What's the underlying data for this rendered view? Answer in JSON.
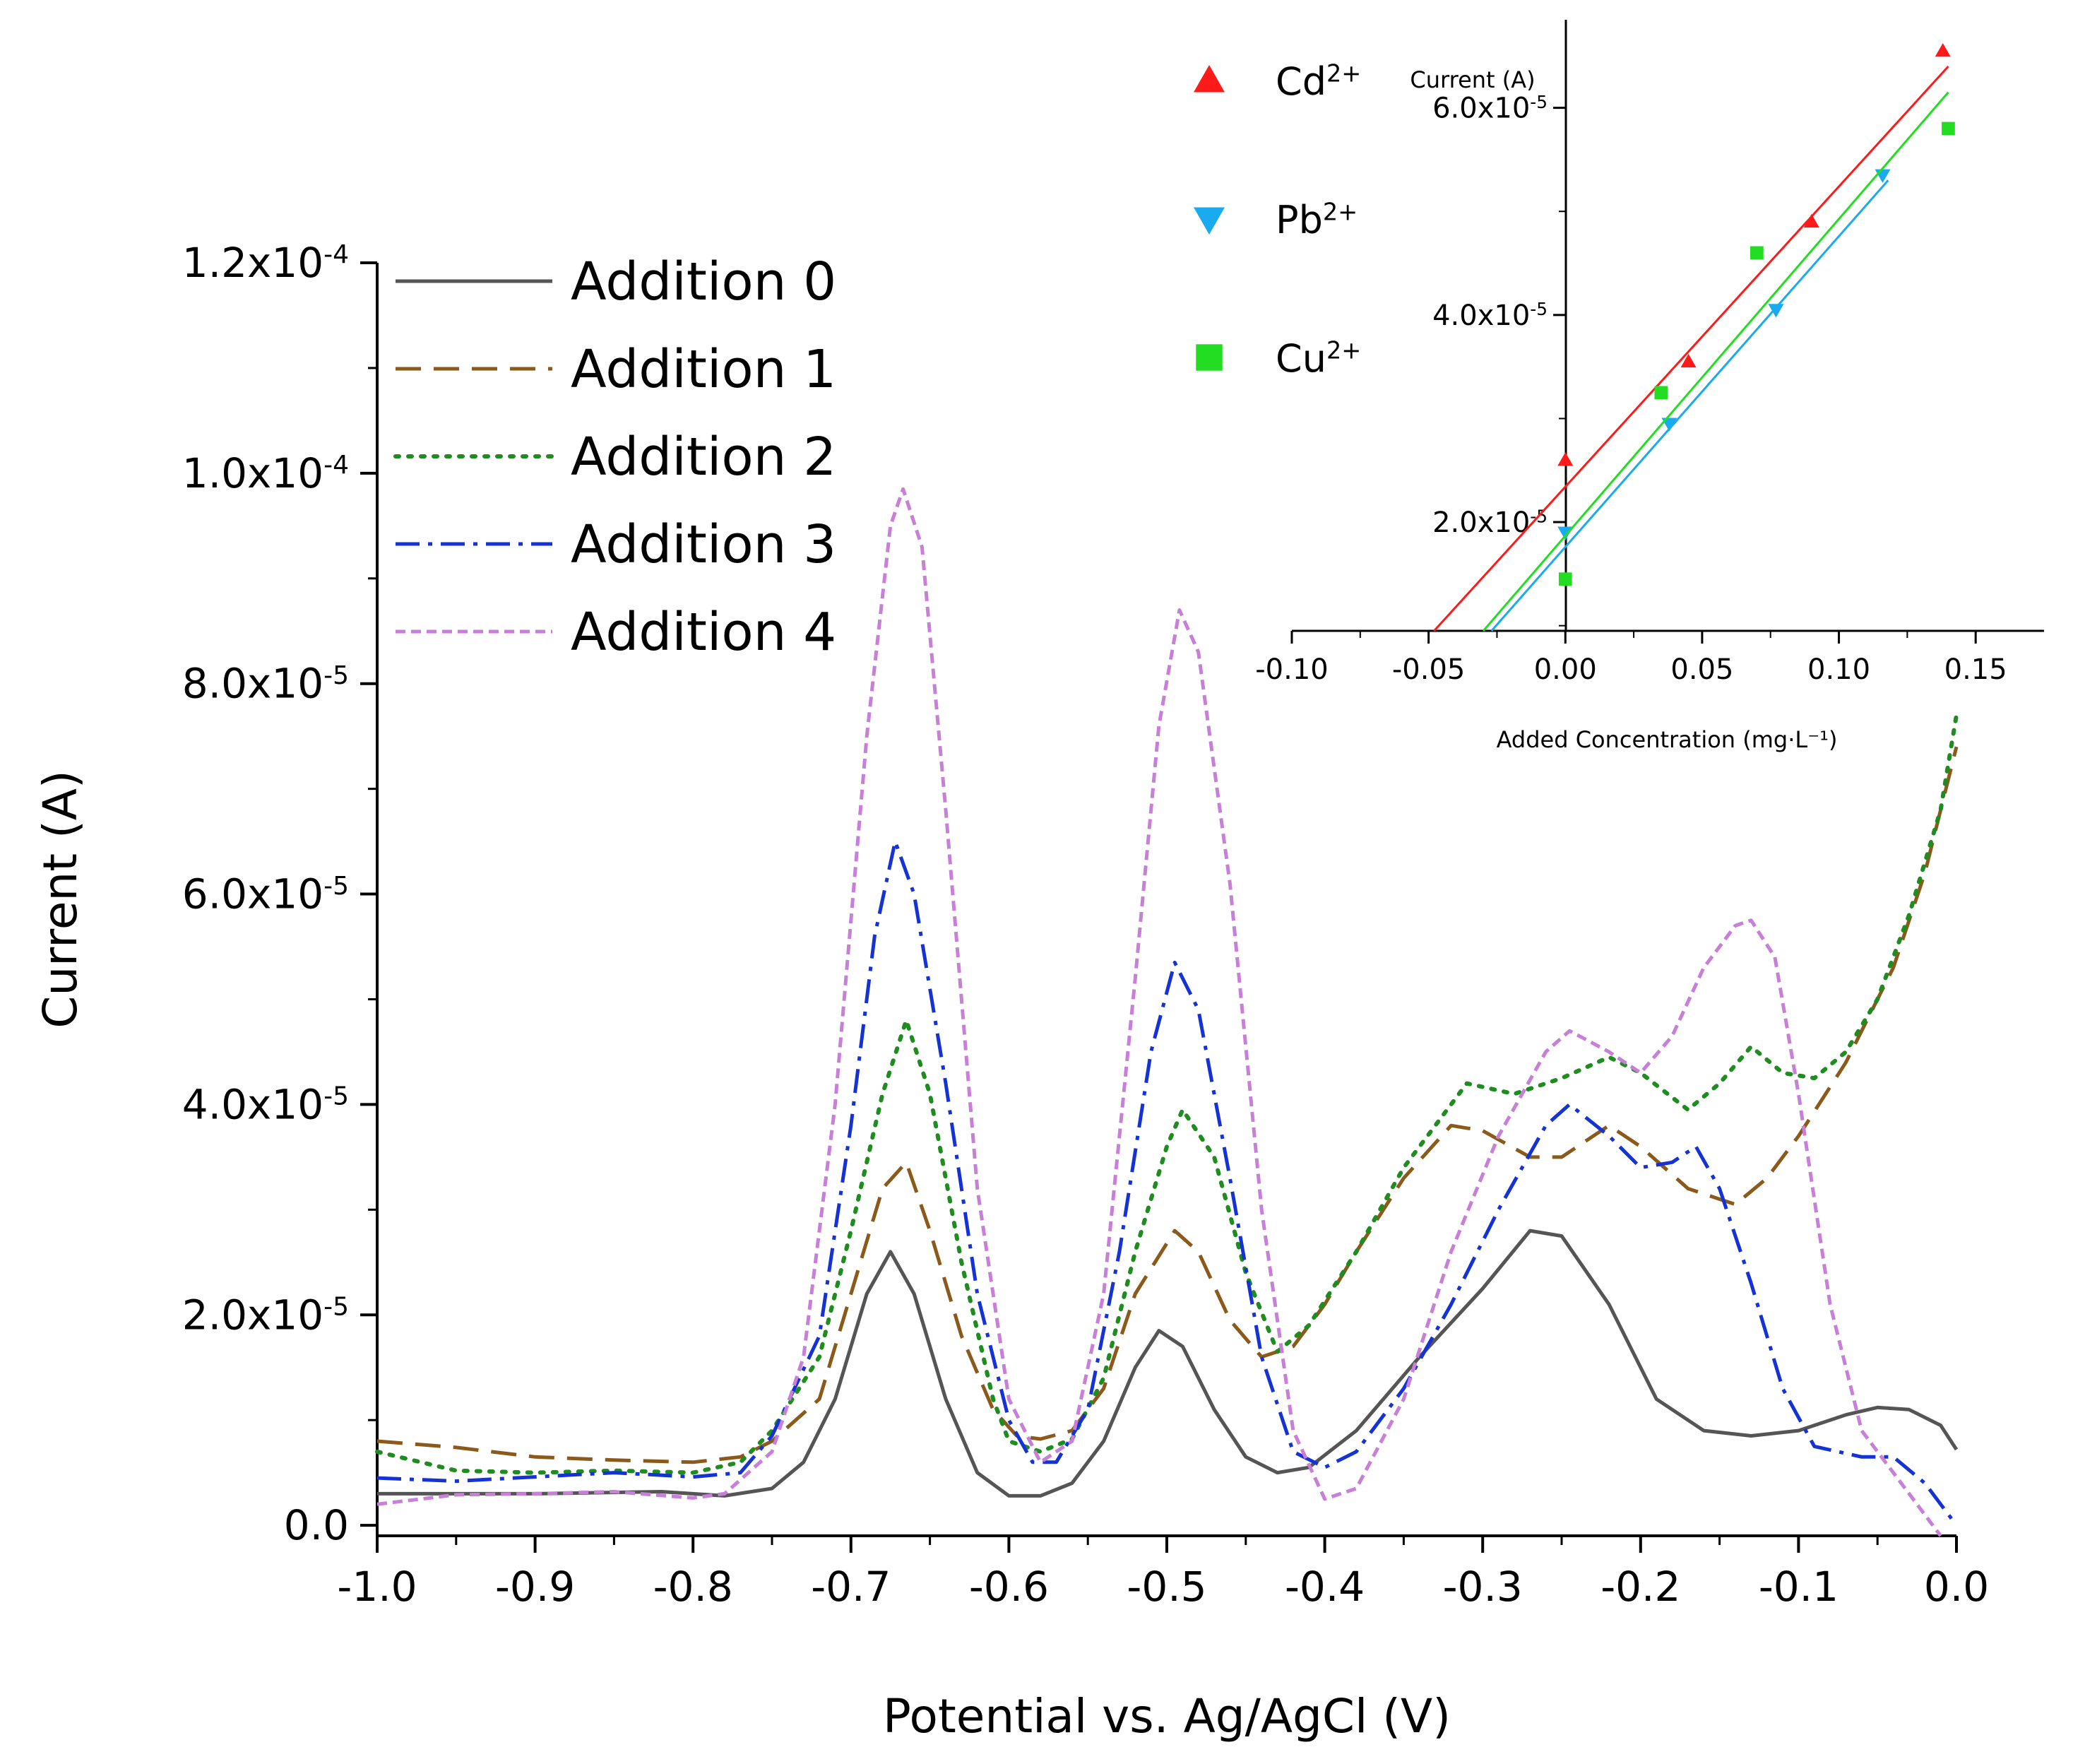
{
  "chart_data": [
    {
      "type": "line",
      "xlabel": "Potential vs. Ag/AgCl (V)",
      "ylabel": "Current (A)",
      "xlim": [
        -1.0,
        0.0
      ],
      "ylim": [
        -1e-06,
        0.00012
      ],
      "x_ticks": [
        "-1.0",
        "-0.9",
        "-0.8",
        "-0.7",
        "-0.6",
        "-0.5",
        "-0.4",
        "-0.3",
        "-0.2",
        "-0.1",
        "0.0"
      ],
      "y_ticks": [
        {
          "mantissa": "0.0",
          "exp": ""
        },
        {
          "mantissa": "2.0x10",
          "exp": "-5"
        },
        {
          "mantissa": "4.0x10",
          "exp": "-5"
        },
        {
          "mantissa": "6.0x10",
          "exp": "-5"
        },
        {
          "mantissa": "8.0x10",
          "exp": "-5"
        },
        {
          "mantissa": "1.0x10",
          "exp": "-4"
        },
        {
          "mantissa": "1.2x10",
          "exp": "-4"
        }
      ],
      "legend_position": "top-left",
      "series": [
        {
          "name": "Addition 0",
          "color": "#555555",
          "dash": "solid",
          "points": [
            [
              -1.0,
              3e-06
            ],
            [
              -0.9,
              3e-06
            ],
            [
              -0.82,
              3.2e-06
            ],
            [
              -0.78,
              2.8e-06
            ],
            [
              -0.75,
              3.5e-06
            ],
            [
              -0.73,
              6e-06
            ],
            [
              -0.71,
              1.2e-05
            ],
            [
              -0.69,
              2.2e-05
            ],
            [
              -0.675,
              2.6e-05
            ],
            [
              -0.66,
              2.2e-05
            ],
            [
              -0.64,
              1.2e-05
            ],
            [
              -0.62,
              5e-06
            ],
            [
              -0.6,
              2.8e-06
            ],
            [
              -0.58,
              2.8e-06
            ],
            [
              -0.56,
              4e-06
            ],
            [
              -0.54,
              8e-06
            ],
            [
              -0.52,
              1.5e-05
            ],
            [
              -0.505,
              1.85e-05
            ],
            [
              -0.49,
              1.7e-05
            ],
            [
              -0.47,
              1.1e-05
            ],
            [
              -0.45,
              6.5e-06
            ],
            [
              -0.43,
              5e-06
            ],
            [
              -0.41,
              5.5e-06
            ],
            [
              -0.38,
              9e-06
            ],
            [
              -0.34,
              1.6e-05
            ],
            [
              -0.3,
              2.25e-05
            ],
            [
              -0.27,
              2.8e-05
            ],
            [
              -0.25,
              2.75e-05
            ],
            [
              -0.22,
              2.1e-05
            ],
            [
              -0.19,
              1.2e-05
            ],
            [
              -0.16,
              9e-06
            ],
            [
              -0.13,
              8.5e-06
            ],
            [
              -0.1,
              9e-06
            ],
            [
              -0.07,
              1.05e-05
            ],
            [
              -0.05,
              1.12e-05
            ],
            [
              -0.03,
              1.1e-05
            ],
            [
              -0.01,
              9.5e-06
            ],
            [
              0.0,
              7.2e-06
            ]
          ]
        },
        {
          "name": "Addition 1",
          "color": "#8B5A1A",
          "dash": "long-dash",
          "points": [
            [
              -1.0,
              8e-06
            ],
            [
              -0.95,
              7.4e-06
            ],
            [
              -0.9,
              6.5e-06
            ],
            [
              -0.85,
              6.2e-06
            ],
            [
              -0.8,
              6e-06
            ],
            [
              -0.77,
              6.5e-06
            ],
            [
              -0.75,
              8e-06
            ],
            [
              -0.72,
              1.2e-05
            ],
            [
              -0.7,
              2.2e-05
            ],
            [
              -0.68,
              3.2e-05
            ],
            [
              -0.665,
              3.45e-05
            ],
            [
              -0.65,
              2.8e-05
            ],
            [
              -0.63,
              1.8e-05
            ],
            [
              -0.61,
              1.1e-05
            ],
            [
              -0.595,
              8.5e-06
            ],
            [
              -0.58,
              8.2e-06
            ],
            [
              -0.56,
              9e-06
            ],
            [
              -0.54,
              1.3e-05
            ],
            [
              -0.52,
              2.2e-05
            ],
            [
              -0.495,
              2.8e-05
            ],
            [
              -0.48,
              2.6e-05
            ],
            [
              -0.46,
              1.95e-05
            ],
            [
              -0.44,
              1.6e-05
            ],
            [
              -0.42,
              1.7e-05
            ],
            [
              -0.4,
              2.1e-05
            ],
            [
              -0.38,
              2.6e-05
            ],
            [
              -0.35,
              3.3e-05
            ],
            [
              -0.32,
              3.8e-05
            ],
            [
              -0.3,
              3.75e-05
            ],
            [
              -0.27,
              3.5e-05
            ],
            [
              -0.25,
              3.5e-05
            ],
            [
              -0.22,
              3.8e-05
            ],
            [
              -0.2,
              3.6e-05
            ],
            [
              -0.17,
              3.2e-05
            ],
            [
              -0.14,
              3.05e-05
            ],
            [
              -0.12,
              3.3e-05
            ],
            [
              -0.1,
              3.7e-05
            ],
            [
              -0.07,
              4.4e-05
            ],
            [
              -0.04,
              5.3e-05
            ],
            [
              -0.02,
              6.2e-05
            ],
            [
              0.0,
              7.4e-05
            ]
          ]
        },
        {
          "name": "Addition 2",
          "color": "#1E8C1E",
          "dash": "dotted",
          "points": [
            [
              -1.0,
              7e-06
            ],
            [
              -0.95,
              5.2e-06
            ],
            [
              -0.9,
              5e-06
            ],
            [
              -0.85,
              5.2e-06
            ],
            [
              -0.8,
              5e-06
            ],
            [
              -0.77,
              6e-06
            ],
            [
              -0.75,
              9e-06
            ],
            [
              -0.72,
              1.6e-05
            ],
            [
              -0.7,
              2.8e-05
            ],
            [
              -0.68,
              4.1e-05
            ],
            [
              -0.665,
              4.8e-05
            ],
            [
              -0.65,
              4.1e-05
            ],
            [
              -0.63,
              2.5e-05
            ],
            [
              -0.61,
              1.2e-05
            ],
            [
              -0.6,
              8e-06
            ],
            [
              -0.58,
              7e-06
            ],
            [
              -0.56,
              8.2e-06
            ],
            [
              -0.54,
              1.4e-05
            ],
            [
              -0.52,
              2.6e-05
            ],
            [
              -0.5,
              3.6e-05
            ],
            [
              -0.49,
              3.95e-05
            ],
            [
              -0.47,
              3.5e-05
            ],
            [
              -0.45,
              2.4e-05
            ],
            [
              -0.43,
              1.65e-05
            ],
            [
              -0.41,
              1.9e-05
            ],
            [
              -0.38,
              2.6e-05
            ],
            [
              -0.35,
              3.4e-05
            ],
            [
              -0.31,
              4.2e-05
            ],
            [
              -0.28,
              4.1e-05
            ],
            [
              -0.25,
              4.25e-05
            ],
            [
              -0.22,
              4.45e-05
            ],
            [
              -0.2,
              4.3e-05
            ],
            [
              -0.17,
              3.95e-05
            ],
            [
              -0.15,
              4.2e-05
            ],
            [
              -0.13,
              4.55e-05
            ],
            [
              -0.11,
              4.3e-05
            ],
            [
              -0.09,
              4.25e-05
            ],
            [
              -0.07,
              4.5e-05
            ],
            [
              -0.05,
              5e-05
            ],
            [
              -0.03,
              5.8e-05
            ],
            [
              -0.01,
              6.8e-05
            ],
            [
              0.0,
              7.7e-05
            ]
          ]
        },
        {
          "name": "Addition 3",
          "color": "#1533D4",
          "dash": "dash-dot",
          "points": [
            [
              -1.0,
              4.5e-06
            ],
            [
              -0.95,
              4.2e-06
            ],
            [
              -0.9,
              4.6e-06
            ],
            [
              -0.85,
              5e-06
            ],
            [
              -0.8,
              4.6e-06
            ],
            [
              -0.77,
              5e-06
            ],
            [
              -0.75,
              8.5e-06
            ],
            [
              -0.72,
              1.8e-05
            ],
            [
              -0.7,
              3.8e-05
            ],
            [
              -0.685,
              5.6e-05
            ],
            [
              -0.672,
              6.5e-05
            ],
            [
              -0.66,
              6e-05
            ],
            [
              -0.64,
              4.2e-05
            ],
            [
              -0.62,
              2.2e-05
            ],
            [
              -0.6,
              1e-05
            ],
            [
              -0.585,
              6e-06
            ],
            [
              -0.57,
              6e-06
            ],
            [
              -0.55,
              1.1e-05
            ],
            [
              -0.53,
              2.6e-05
            ],
            [
              -0.51,
              4.5e-05
            ],
            [
              -0.495,
              5.35e-05
            ],
            [
              -0.48,
              4.9e-05
            ],
            [
              -0.46,
              3.3e-05
            ],
            [
              -0.44,
              1.6e-05
            ],
            [
              -0.42,
              7e-06
            ],
            [
              -0.4,
              5.5e-06
            ],
            [
              -0.38,
              7e-06
            ],
            [
              -0.35,
              1.3e-05
            ],
            [
              -0.32,
              2.1e-05
            ],
            [
              -0.29,
              3e-05
            ],
            [
              -0.26,
              3.8e-05
            ],
            [
              -0.245,
              4e-05
            ],
            [
              -0.22,
              3.7e-05
            ],
            [
              -0.2,
              3.4e-05
            ],
            [
              -0.18,
              3.45e-05
            ],
            [
              -0.165,
              3.6e-05
            ],
            [
              -0.15,
              3.2e-05
            ],
            [
              -0.13,
              2.3e-05
            ],
            [
              -0.11,
              1.3e-05
            ],
            [
              -0.09,
              7.5e-06
            ],
            [
              -0.06,
              6.5e-06
            ],
            [
              -0.04,
              6.5e-06
            ],
            [
              -0.02,
              4e-06
            ],
            [
              0.0,
              0.0
            ]
          ]
        },
        {
          "name": "Addition 4",
          "color": "#C77FD8",
          "dash": "short-dash",
          "points": [
            [
              -1.0,
              2e-06
            ],
            [
              -0.95,
              2.9e-06
            ],
            [
              -0.9,
              3e-06
            ],
            [
              -0.85,
              3.2e-06
            ],
            [
              -0.8,
              2.6e-06
            ],
            [
              -0.78,
              3e-06
            ],
            [
              -0.75,
              7e-06
            ],
            [
              -0.73,
              1.6e-05
            ],
            [
              -0.71,
              4e-05
            ],
            [
              -0.69,
              7.5e-05
            ],
            [
              -0.675,
              9.5e-05
            ],
            [
              -0.667,
              9.85e-05
            ],
            [
              -0.655,
              9.3e-05
            ],
            [
              -0.64,
              6.8e-05
            ],
            [
              -0.62,
              3.2e-05
            ],
            [
              -0.6,
              1.2e-05
            ],
            [
              -0.58,
              6e-06
            ],
            [
              -0.56,
              8e-06
            ],
            [
              -0.54,
              2.2e-05
            ],
            [
              -0.52,
              5.2e-05
            ],
            [
              -0.505,
              7.6e-05
            ],
            [
              -0.492,
              8.7e-05
            ],
            [
              -0.48,
              8.3e-05
            ],
            [
              -0.46,
              6.1e-05
            ],
            [
              -0.44,
              3e-05
            ],
            [
              -0.42,
              9e-06
            ],
            [
              -0.4,
              2.5e-06
            ],
            [
              -0.38,
              3.5e-06
            ],
            [
              -0.35,
              1.2e-05
            ],
            [
              -0.32,
              2.6e-05
            ],
            [
              -0.29,
              3.7e-05
            ],
            [
              -0.26,
              4.5e-05
            ],
            [
              -0.245,
              4.7e-05
            ],
            [
              -0.22,
              4.5e-05
            ],
            [
              -0.2,
              4.3e-05
            ],
            [
              -0.18,
              4.65e-05
            ],
            [
              -0.16,
              5.3e-05
            ],
            [
              -0.14,
              5.7e-05
            ],
            [
              -0.13,
              5.75e-05
            ],
            [
              -0.115,
              5.4e-05
            ],
            [
              -0.1,
              4.1e-05
            ],
            [
              -0.08,
              2.1e-05
            ],
            [
              -0.06,
              9e-06
            ],
            [
              -0.04,
              5e-06
            ],
            [
              -0.02,
              1e-06
            ],
            [
              -0.01,
              -1e-06
            ]
          ]
        }
      ]
    },
    {
      "type": "scatter",
      "xlabel": "Added Concentration (mg·L⁻¹)",
      "ylabel": "Current (A)",
      "xlim": [
        -0.1,
        0.175
      ],
      "ylim": [
        9.5e-06,
        6.85e-05
      ],
      "x_ticks": [
        "-0.10",
        "-0.05",
        "0.00",
        "0.05",
        "0.10",
        "0.15"
      ],
      "y_ticks": [
        {
          "mantissa": "2.0x10",
          "exp": "-5"
        },
        {
          "mantissa": "4.0x10",
          "exp": "-5"
        },
        {
          "mantissa": "6.0x10",
          "exp": "-5"
        }
      ],
      "legend_position": "top-left",
      "series": [
        {
          "name": "Cd",
          "ion_charge": "2+",
          "color": "#FF1A1A",
          "marker": "triangle-up",
          "x": [
            0.0,
            0.045,
            0.09,
            0.138
          ],
          "y": [
            2.6e-05,
            3.55e-05,
            4.9e-05,
            6.55e-05
          ],
          "fit_x": [
            -0.048,
            0.14
          ],
          "fit_y": [
            9.5e-06,
            6.4e-05
          ]
        },
        {
          "name": "Pb",
          "ion_charge": "2+",
          "color": "#1AAAF0",
          "marker": "triangle-down",
          "x": [
            0.0,
            0.038,
            0.077,
            0.116
          ],
          "y": [
            1.9e-05,
            2.95e-05,
            4.05e-05,
            5.35e-05
          ],
          "fit_x": [
            -0.027,
            0.118
          ],
          "fit_y": [
            9.5e-06,
            5.3e-05
          ]
        },
        {
          "name": "Cu",
          "ion_charge": "2+",
          "color": "#22DD22",
          "marker": "square",
          "x": [
            0.0,
            0.035,
            0.07,
            0.14
          ],
          "y": [
            1.45e-05,
            3.25e-05,
            4.6e-05,
            5.8e-05
          ],
          "fit_x": [
            -0.03,
            0.14
          ],
          "fit_y": [
            9.5e-06,
            6.15e-05
          ]
        }
      ]
    }
  ]
}
